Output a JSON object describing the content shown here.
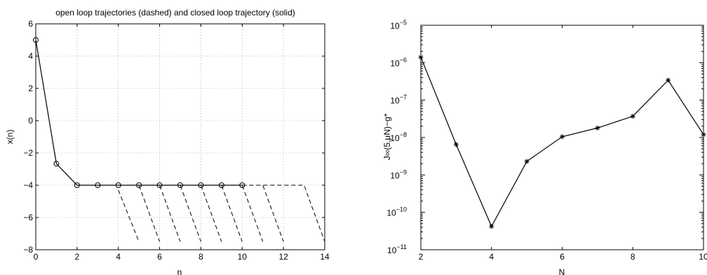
{
  "chart_data": [
    {
      "type": "line",
      "title": "open loop trajectories (dashed) and closed loop trajectory (solid)",
      "xlabel": "n",
      "ylabel": "x(n)",
      "xlim": [
        0,
        14
      ],
      "ylim": [
        -8,
        6
      ],
      "xticks": [
        0,
        2,
        4,
        6,
        8,
        10,
        12,
        14
      ],
      "yticks": [
        -8,
        -6,
        -4,
        -2,
        0,
        2,
        4,
        6
      ],
      "grid": true,
      "series": [
        {
          "style": "solid-circle-markers",
          "x": [
            0,
            1,
            2,
            3,
            4,
            5,
            6,
            7,
            8,
            9,
            10
          ],
          "y": [
            5,
            -2.67,
            -4,
            -4,
            -4,
            -4,
            -4,
            -4,
            -4,
            -4,
            -4
          ]
        }
      ],
      "open_loop_segments": [
        {
          "x": [
            4,
            5
          ],
          "y": [
            -4.3,
            -7.5
          ]
        },
        {
          "x": [
            4,
            5,
            6
          ],
          "y": [
            -4,
            -4,
            -7.5
          ]
        },
        {
          "x": [
            5,
            6,
            7
          ],
          "y": [
            -4,
            -4,
            -7.5
          ]
        },
        {
          "x": [
            6,
            7,
            8
          ],
          "y": [
            -4,
            -4,
            -7.5
          ]
        },
        {
          "x": [
            7,
            8,
            9
          ],
          "y": [
            -4,
            -4,
            -7.5
          ]
        },
        {
          "x": [
            8,
            9,
            10
          ],
          "y": [
            -4,
            -4,
            -7.5
          ]
        },
        {
          "x": [
            9,
            10,
            11
          ],
          "y": [
            -4,
            -4,
            -7.5
          ]
        },
        {
          "x": [
            10,
            11,
            12
          ],
          "y": [
            -4,
            -4,
            -7.5
          ]
        },
        {
          "x": [
            10,
            13,
            14
          ],
          "y": [
            -4,
            -4,
            -7.5
          ]
        }
      ]
    },
    {
      "type": "line",
      "title": "",
      "xlabel": "N",
      "ylabel": "J∞(5,μN)−g*",
      "xlim": [
        2,
        10
      ],
      "ylim_exp": [
        -11,
        -5
      ],
      "log_y": true,
      "xticks": [
        2,
        4,
        6,
        8,
        10
      ],
      "yticks": [
        "10^-11",
        "10^-10",
        "10^-9",
        "10^-8",
        "10^-7",
        "10^-6",
        "10^-5"
      ],
      "grid": false,
      "series": [
        {
          "style": "solid-star-markers",
          "x": [
            2,
            3,
            4,
            5,
            6,
            7,
            8,
            9,
            10
          ],
          "y": [
            1.4e-06,
            6.5e-09,
            4.2e-11,
            2.3e-09,
            1.05e-08,
            1.8e-08,
            3.7e-08,
            3.4e-07,
            1.2e-08
          ]
        }
      ]
    }
  ]
}
